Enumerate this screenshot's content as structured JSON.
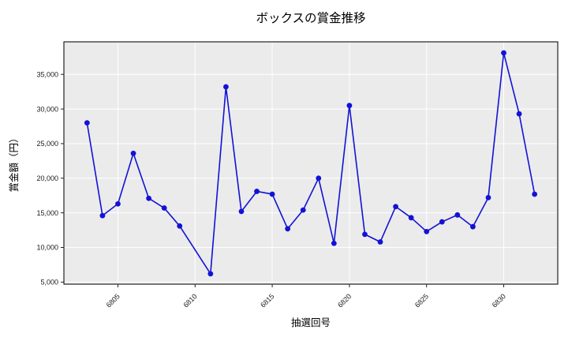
{
  "title": "ボックスの賞金推移",
  "chart_data": {
    "type": "line",
    "title": "ボックスの賞金推移",
    "xlabel": "抽選回号",
    "ylabel": "賞金額（円）",
    "x": [
      6803,
      6804,
      6805,
      6806,
      6807,
      6808,
      6809,
      6811,
      6812,
      6813,
      6814,
      6815,
      6816,
      6817,
      6818,
      6819,
      6820,
      6821,
      6822,
      6823,
      6824,
      6825,
      6826,
      6827,
      6828,
      6829,
      6830,
      6831,
      6832
    ],
    "values": [
      28000,
      14600,
      16300,
      23600,
      17100,
      15700,
      13100,
      6200,
      33200,
      15200,
      18100,
      17700,
      12700,
      15400,
      20000,
      10600,
      30500,
      11900,
      10800,
      15900,
      14300,
      12300,
      13700,
      14700,
      13000,
      17200,
      38100,
      29300,
      17700
    ],
    "x_ticks": [
      6805,
      6810,
      6815,
      6820,
      6825,
      6830
    ],
    "y_ticks": [
      5000,
      10000,
      15000,
      20000,
      25000,
      30000,
      35000
    ],
    "xlim": [
      6801.5,
      6833.5
    ],
    "ylim": [
      4700,
      39700
    ],
    "grid": true,
    "legend": "none",
    "line_color": "#1212d6",
    "marker_color": "#1212d6",
    "plot_bg": "#ebebeb",
    "grid_color": "#ffffff",
    "spine_color": "#222222",
    "figure_bg": "#ffffff"
  }
}
